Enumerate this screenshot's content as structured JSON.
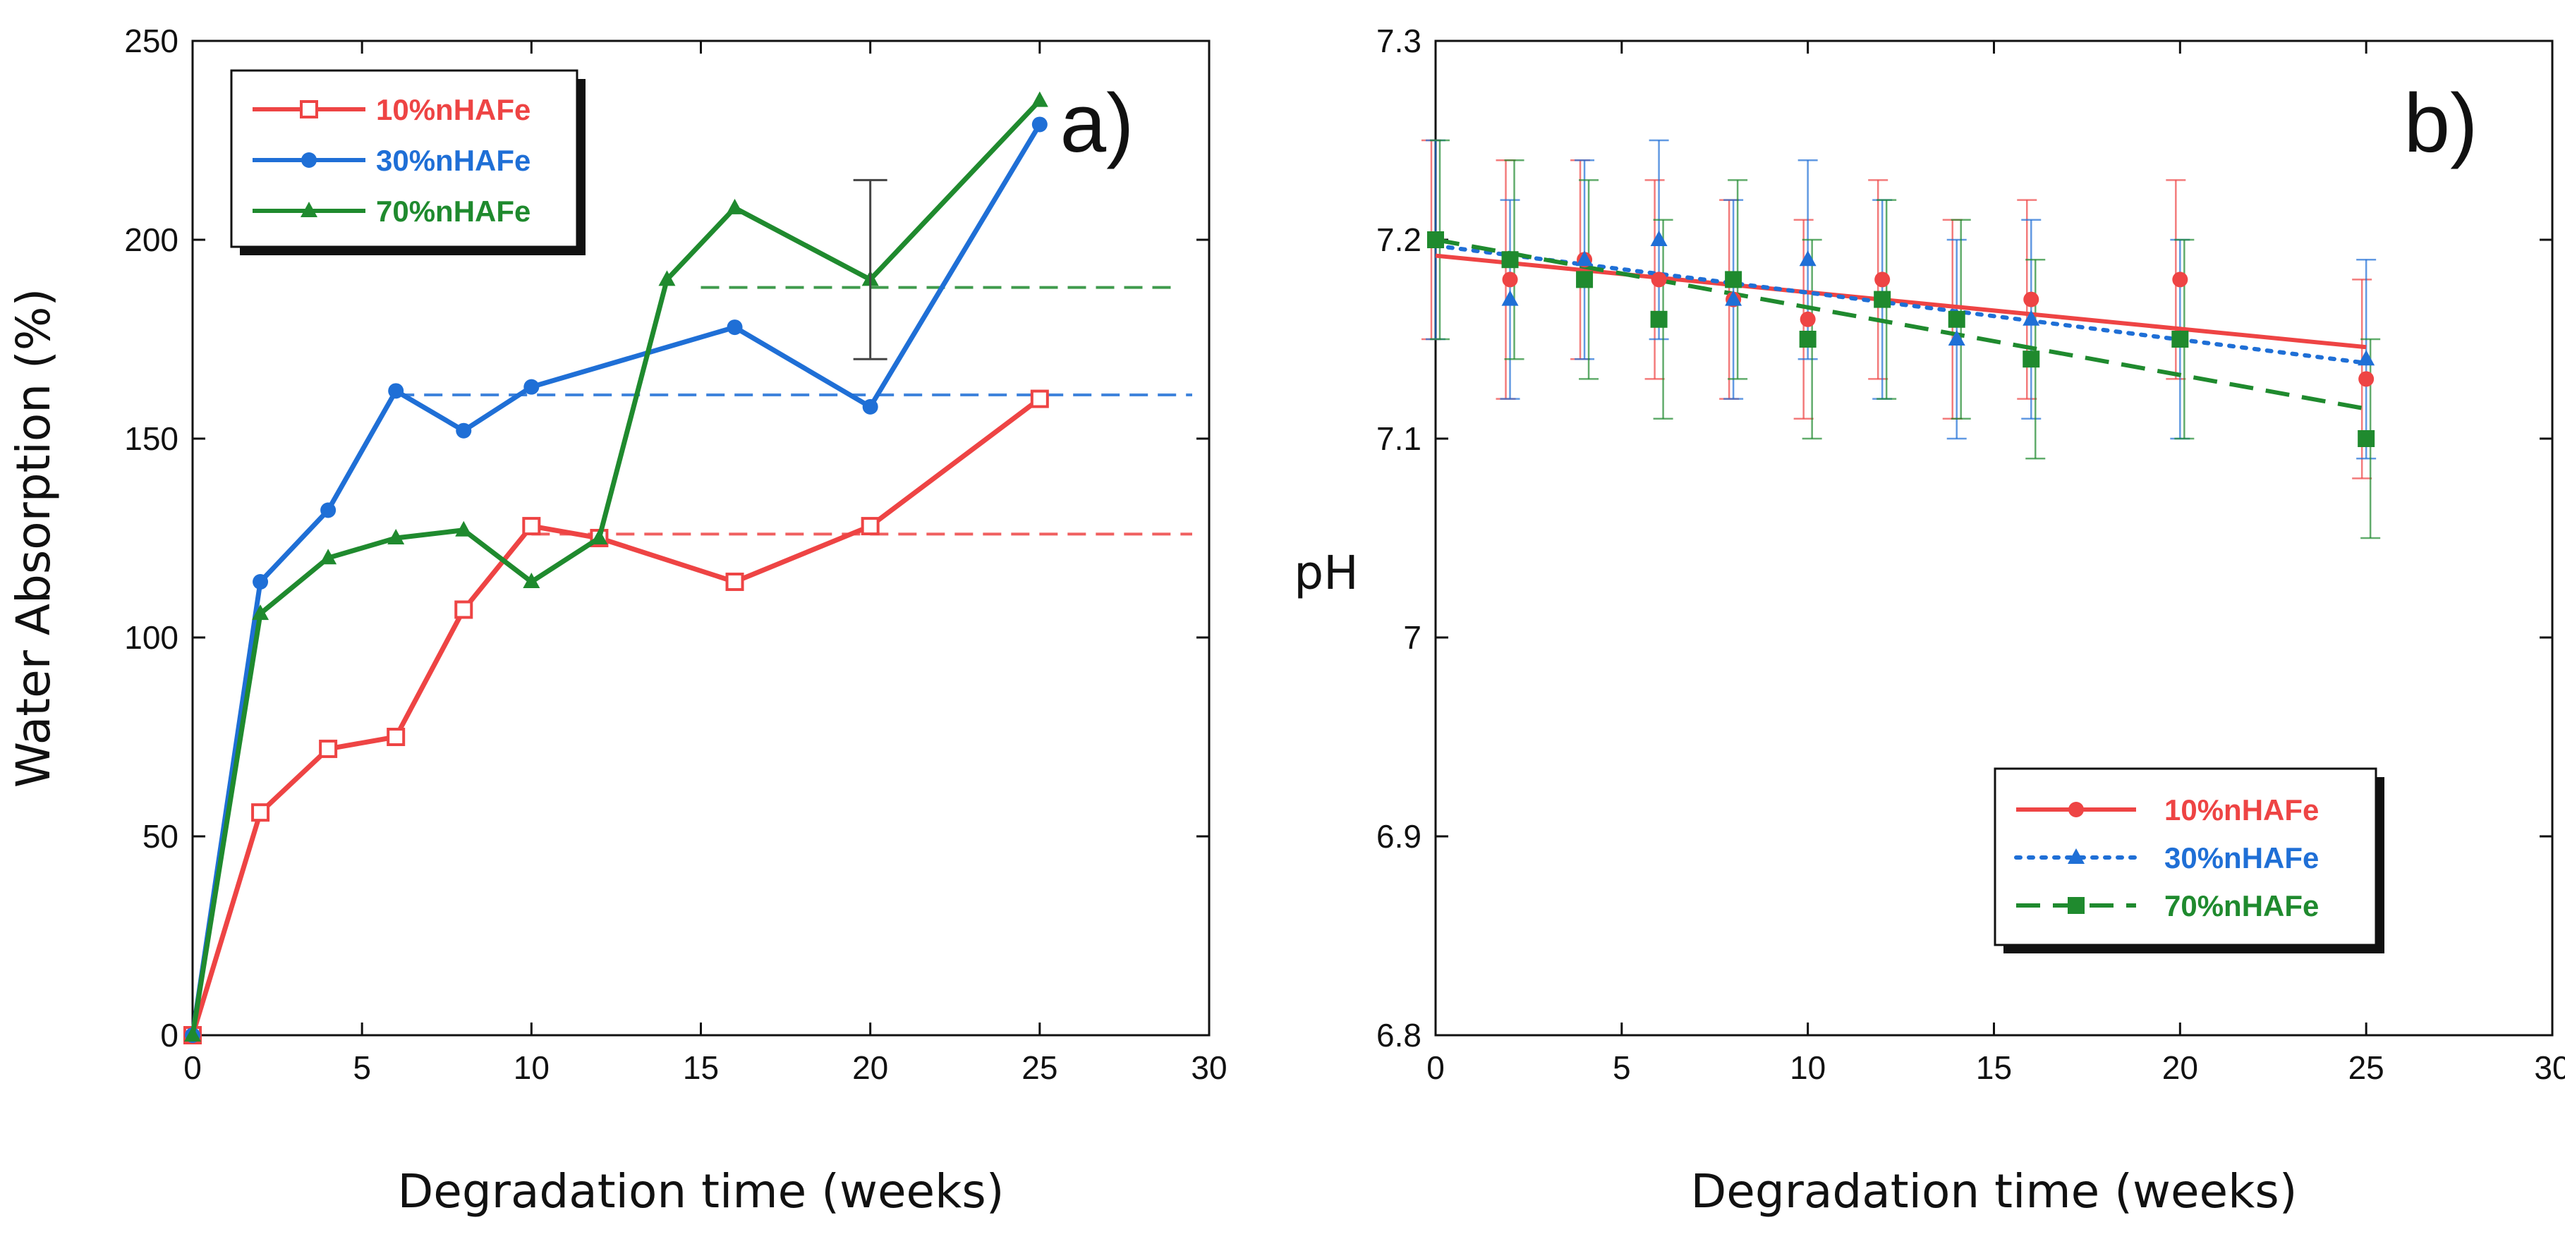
{
  "chart_data": [
    {
      "panel": "a)",
      "type": "line",
      "xlabel": "Degradation time (weeks)",
      "ylabel": "Water Absorption (%)",
      "xlim": [
        0,
        30
      ],
      "ylim": [
        0,
        250
      ],
      "xticks": [
        "0",
        "5",
        "10",
        "15",
        "20",
        "25",
        "30"
      ],
      "yticks": [
        "0",
        "50",
        "100",
        "150",
        "200",
        "250"
      ],
      "legend_position": "top-left",
      "series": [
        {
          "name": "10%nHAFe",
          "color": "#ee4444",
          "marker": "open-square",
          "line": "solid",
          "x": [
            0,
            2,
            4,
            6,
            8,
            10,
            12,
            16,
            20,
            25
          ],
          "y": [
            0,
            56,
            72,
            75,
            107,
            128,
            125,
            114,
            128,
            160
          ],
          "plateau": 126,
          "plateau_range": [
            10,
            29.5
          ]
        },
        {
          "name": "30%nHAFe",
          "color": "#1f6fd6",
          "marker": "circle",
          "line": "solid",
          "x": [
            0,
            2,
            4,
            6,
            8,
            10,
            16,
            20,
            25
          ],
          "y": [
            0,
            114,
            132,
            162,
            152,
            163,
            178,
            158,
            229
          ],
          "plateau": 161,
          "plateau_range": [
            6,
            29.5
          ]
        },
        {
          "name": "70%nHAFe",
          "color": "#1f8a2e",
          "marker": "triangle",
          "line": "solid",
          "x": [
            0,
            2,
            4,
            6,
            8,
            10,
            12,
            14,
            16,
            20,
            25
          ],
          "y": [
            0,
            106,
            120,
            125,
            127,
            114,
            125,
            190,
            208,
            190,
            235
          ],
          "plateau": 188,
          "plateau_range": [
            15,
            29
          ]
        }
      ],
      "error_bar": {
        "x": 20,
        "low": 170,
        "high": 215
      }
    },
    {
      "panel": "b)",
      "type": "scatter",
      "xlabel": "Degradation time (weeks)",
      "ylabel": "pH",
      "xlim": [
        0,
        30
      ],
      "ylim": [
        6.8,
        7.3
      ],
      "xticks": [
        "0",
        "5",
        "10",
        "15",
        "20",
        "25",
        "30"
      ],
      "yticks": [
        "6.8",
        "6.9",
        "7",
        "7.1",
        "7.2",
        "7.3"
      ],
      "legend_position": "bottom-right",
      "series": [
        {
          "name": "10%nHAFe",
          "color": "#ee4444",
          "marker": "circle",
          "fit_line": "solid",
          "x": [
            0,
            2,
            4,
            6,
            8,
            10,
            12,
            14,
            16,
            20,
            25
          ],
          "y": [
            7.2,
            7.18,
            7.19,
            7.18,
            7.17,
            7.16,
            7.18,
            7.16,
            7.17,
            7.18,
            7.13
          ],
          "err": [
            0.05,
            0.06,
            0.05,
            0.05,
            0.05,
            0.05,
            0.05,
            0.05,
            0.05,
            0.05,
            0.05
          ],
          "fit": [
            7.192,
            7.146
          ]
        },
        {
          "name": "30%nHAFe",
          "color": "#1f6fd6",
          "marker": "triangle",
          "fit_line": "dotted",
          "x": [
            0,
            2,
            4,
            6,
            8,
            10,
            12,
            14,
            16,
            20,
            25
          ],
          "y": [
            7.2,
            7.17,
            7.19,
            7.2,
            7.17,
            7.19,
            7.17,
            7.15,
            7.16,
            7.15,
            7.14
          ],
          "err": [
            0.05,
            0.05,
            0.05,
            0.05,
            0.05,
            0.05,
            0.05,
            0.05,
            0.05,
            0.05,
            0.05
          ],
          "fit": [
            7.197,
            7.138
          ]
        },
        {
          "name": "70%nHAFe",
          "color": "#1f8a2e",
          "marker": "square",
          "fit_line": "dashed",
          "x": [
            0,
            2,
            4,
            6,
            8,
            10,
            12,
            14,
            16,
            20,
            25
          ],
          "y": [
            7.2,
            7.19,
            7.18,
            7.16,
            7.18,
            7.15,
            7.17,
            7.16,
            7.14,
            7.15,
            7.1
          ],
          "err": [
            0.05,
            0.05,
            0.05,
            0.05,
            0.05,
            0.05,
            0.05,
            0.05,
            0.05,
            0.05,
            0.05
          ],
          "fit": [
            7.2,
            7.115
          ]
        }
      ]
    }
  ]
}
